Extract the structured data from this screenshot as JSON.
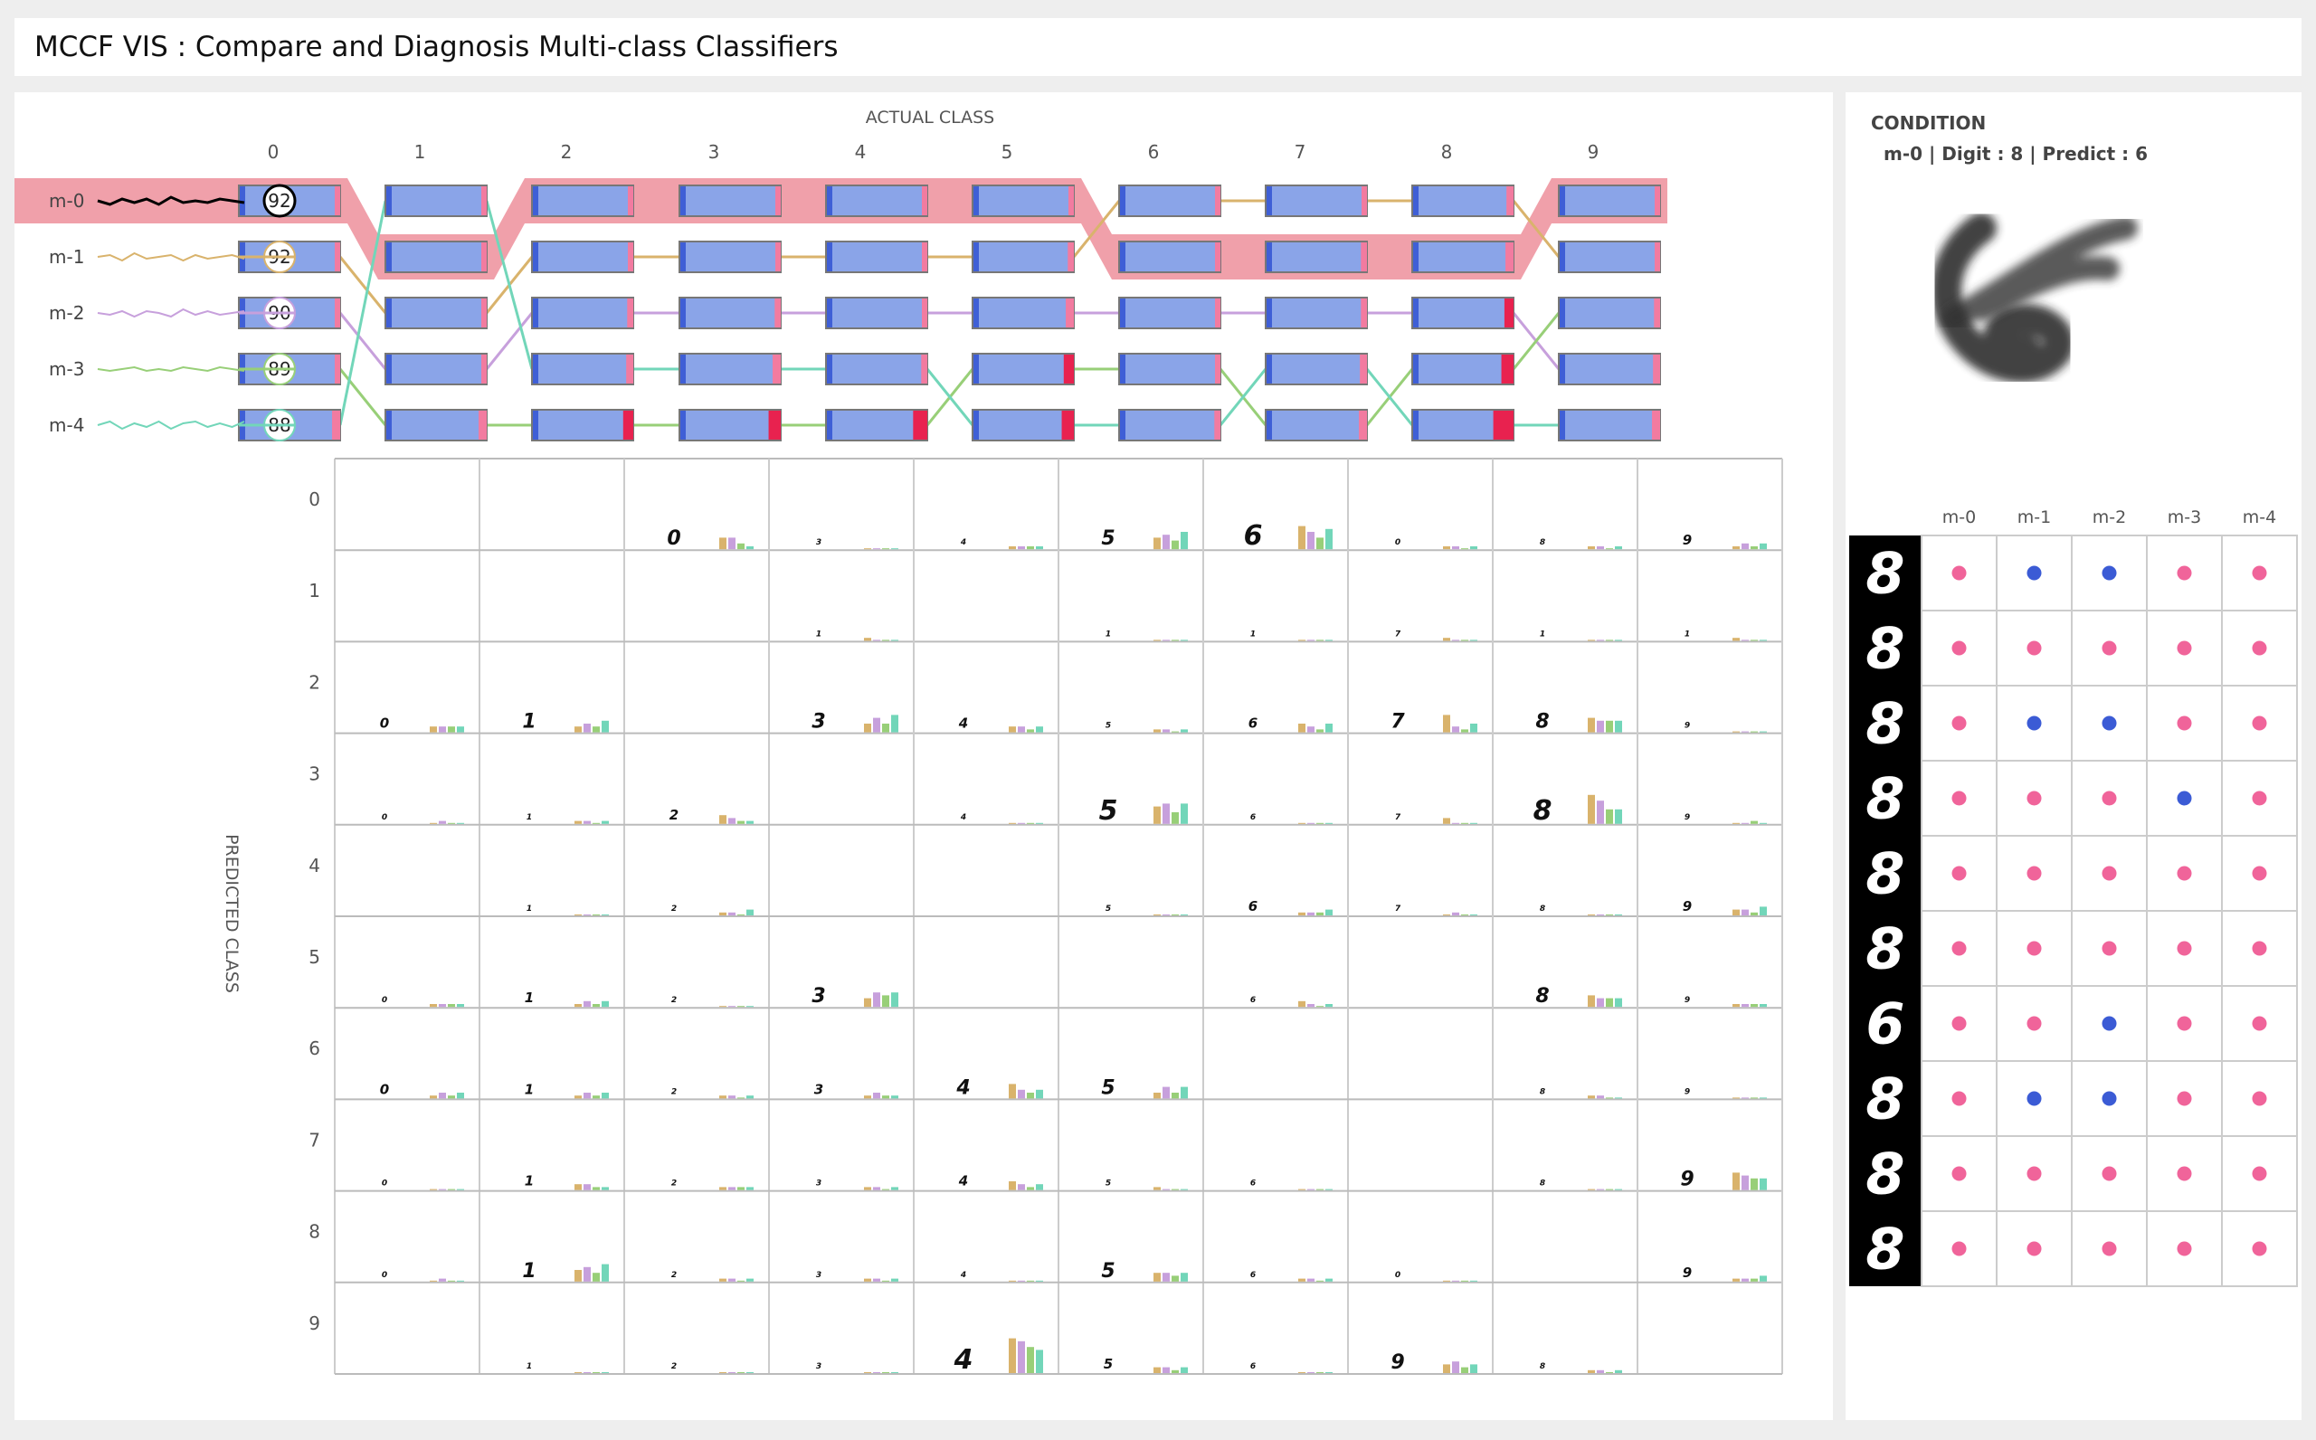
{
  "header": {
    "title": "MCCF VIS : Compare and Diagnosis Multi-class Classifiers"
  },
  "colors": {
    "highlight": "#f0a0aa",
    "bar_blue": "#8aa4e8",
    "bar_edge_blue": "#3f5fd6",
    "bar_red": "#e8224f",
    "bar_pink": "#f27ba0",
    "model_m0": "#000000",
    "model_m1": "#d9b36c",
    "model_m2": "#c7a0dc",
    "model_m3": "#98cf78",
    "model_m4": "#72d6b9",
    "dot_pink": "#f0649a",
    "dot_blue": "#3b5bd5",
    "digit_bg": "#000000"
  },
  "axes": {
    "actual_label": "ACTUAL CLASS",
    "predicted_label": "PREDICTED CLASS",
    "classes": [
      "0",
      "1",
      "2",
      "3",
      "4",
      "5",
      "6",
      "7",
      "8",
      "9"
    ]
  },
  "models": [
    {
      "name": "m-0",
      "accuracy": "92",
      "selected": true,
      "icon": "sparkline-icon"
    },
    {
      "name": "m-1",
      "accuracy": "92",
      "selected": false,
      "icon": "sparkline-icon"
    },
    {
      "name": "m-2",
      "accuracy": "90",
      "selected": false,
      "icon": "sparkline-icon"
    },
    {
      "name": "m-3",
      "accuracy": "89",
      "selected": false,
      "icon": "sparkline-icon"
    },
    {
      "name": "m-4",
      "accuracy": "88",
      "selected": false,
      "icon": "sparkline-icon"
    }
  ],
  "rank_order": [
    [
      0,
      1,
      2,
      3,
      4
    ],
    [
      4,
      0,
      1,
      2,
      3
    ],
    [
      0,
      1,
      2,
      4,
      3
    ],
    [
      0,
      1,
      2,
      4,
      3
    ],
    [
      0,
      1,
      2,
      4,
      3
    ],
    [
      0,
      1,
      2,
      3,
      4
    ],
    [
      1,
      0,
      2,
      3,
      4
    ],
    [
      1,
      0,
      2,
      4,
      3
    ],
    [
      1,
      0,
      2,
      3,
      4
    ],
    [
      0,
      1,
      3,
      2,
      4
    ]
  ],
  "error_rates": [
    [
      0.02,
      0.03,
      0.03,
      0.04,
      0.08
    ],
    [
      0.02,
      0.03,
      0.04,
      0.05,
      0.08
    ],
    [
      0.03,
      0.04,
      0.06,
      0.07,
      0.1
    ],
    [
      0.02,
      0.03,
      0.06,
      0.08,
      0.12
    ],
    [
      0.02,
      0.03,
      0.05,
      0.06,
      0.14
    ],
    [
      0.05,
      0.06,
      0.08,
      0.1,
      0.12
    ],
    [
      0.02,
      0.03,
      0.03,
      0.04,
      0.06
    ],
    [
      0.04,
      0.06,
      0.06,
      0.07,
      0.08
    ],
    [
      0.07,
      0.08,
      0.09,
      0.12,
      0.2
    ],
    [
      0.04,
      0.05,
      0.06,
      0.07,
      0.08
    ]
  ],
  "confusion_cells": [
    {
      "p": 0,
      "a": 2,
      "digit": "0",
      "bars": [
        4,
        4,
        2,
        1
      ]
    },
    {
      "p": 0,
      "a": 3,
      "digit": "3",
      "bars": [
        0,
        0,
        0,
        0
      ]
    },
    {
      "p": 0,
      "a": 4,
      "digit": "4",
      "bars": [
        1,
        1,
        1,
        1
      ]
    },
    {
      "p": 0,
      "a": 5,
      "digit": "5",
      "bars": [
        4,
        5,
        3,
        6
      ]
    },
    {
      "p": 0,
      "a": 6,
      "digit": "6",
      "bars": [
        8,
        6,
        4,
        7
      ]
    },
    {
      "p": 0,
      "a": 7,
      "digit": "0",
      "bars": [
        1,
        1,
        0,
        1
      ]
    },
    {
      "p": 0,
      "a": 8,
      "digit": "8",
      "bars": [
        1,
        1,
        0,
        1
      ]
    },
    {
      "p": 0,
      "a": 9,
      "digit": "9",
      "bars": [
        1,
        2,
        1,
        2
      ]
    },
    {
      "p": 1,
      "a": 3,
      "digit": "1",
      "bars": [
        1,
        0,
        0,
        0
      ]
    },
    {
      "p": 1,
      "a": 5,
      "digit": "1",
      "bars": [
        0,
        0,
        0,
        0
      ]
    },
    {
      "p": 1,
      "a": 6,
      "digit": "1",
      "bars": [
        0,
        0,
        0,
        0
      ]
    },
    {
      "p": 1,
      "a": 7,
      "digit": "7",
      "bars": [
        1,
        0,
        0,
        0
      ]
    },
    {
      "p": 1,
      "a": 8,
      "digit": "1",
      "bars": [
        0,
        0,
        0,
        0
      ]
    },
    {
      "p": 1,
      "a": 9,
      "digit": "1",
      "bars": [
        1,
        0,
        0,
        0
      ]
    },
    {
      "p": 2,
      "a": 0,
      "digit": "0",
      "bars": [
        2,
        2,
        2,
        2
      ]
    },
    {
      "p": 2,
      "a": 1,
      "digit": "1",
      "bars": [
        2,
        3,
        2,
        4
      ]
    },
    {
      "p": 2,
      "a": 3,
      "digit": "3",
      "bars": [
        3,
        5,
        3,
        6
      ]
    },
    {
      "p": 2,
      "a": 4,
      "digit": "4",
      "bars": [
        2,
        2,
        1,
        2
      ]
    },
    {
      "p": 2,
      "a": 5,
      "digit": "5",
      "bars": [
        1,
        1,
        0,
        1
      ]
    },
    {
      "p": 2,
      "a": 6,
      "digit": "6",
      "bars": [
        3,
        2,
        1,
        3
      ]
    },
    {
      "p": 2,
      "a": 7,
      "digit": "7",
      "bars": [
        6,
        2,
        1,
        3
      ]
    },
    {
      "p": 2,
      "a": 8,
      "digit": "8",
      "bars": [
        5,
        4,
        4,
        4
      ]
    },
    {
      "p": 2,
      "a": 9,
      "digit": "9",
      "bars": [
        0,
        0,
        0,
        0
      ]
    },
    {
      "p": 3,
      "a": 0,
      "digit": "0",
      "bars": [
        0,
        1,
        0,
        0
      ]
    },
    {
      "p": 3,
      "a": 1,
      "digit": "1",
      "bars": [
        1,
        1,
        0,
        1
      ]
    },
    {
      "p": 3,
      "a": 2,
      "digit": "2",
      "bars": [
        3,
        2,
        1,
        1
      ]
    },
    {
      "p": 3,
      "a": 4,
      "digit": "4",
      "bars": [
        0,
        0,
        0,
        0
      ]
    },
    {
      "p": 3,
      "a": 5,
      "digit": "5",
      "bars": [
        6,
        7,
        4,
        7
      ]
    },
    {
      "p": 3,
      "a": 6,
      "digit": "6",
      "bars": [
        0,
        0,
        0,
        0
      ]
    },
    {
      "p": 3,
      "a": 7,
      "digit": "7",
      "bars": [
        2,
        0,
        0,
        0
      ]
    },
    {
      "p": 3,
      "a": 8,
      "digit": "8",
      "bars": [
        10,
        8,
        5,
        5
      ]
    },
    {
      "p": 3,
      "a": 9,
      "digit": "9",
      "bars": [
        0,
        0,
        1,
        0
      ]
    },
    {
      "p": 4,
      "a": 1,
      "digit": "1",
      "bars": [
        0,
        0,
        0,
        0
      ]
    },
    {
      "p": 4,
      "a": 2,
      "digit": "2",
      "bars": [
        1,
        1,
        0,
        2
      ]
    },
    {
      "p": 4,
      "a": 5,
      "digit": "5",
      "bars": [
        0,
        0,
        0,
        0
      ]
    },
    {
      "p": 4,
      "a": 6,
      "digit": "6",
      "bars": [
        1,
        1,
        1,
        2
      ]
    },
    {
      "p": 4,
      "a": 7,
      "digit": "7",
      "bars": [
        0,
        1,
        0,
        0
      ]
    },
    {
      "p": 4,
      "a": 8,
      "digit": "8",
      "bars": [
        0,
        0,
        0,
        0
      ]
    },
    {
      "p": 4,
      "a": 9,
      "digit": "9",
      "bars": [
        2,
        2,
        1,
        3
      ]
    },
    {
      "p": 5,
      "a": 0,
      "digit": "0",
      "bars": [
        1,
        1,
        1,
        1
      ]
    },
    {
      "p": 5,
      "a": 1,
      "digit": "1",
      "bars": [
        1,
        2,
        1,
        2
      ]
    },
    {
      "p": 5,
      "a": 2,
      "digit": "2",
      "bars": [
        0,
        0,
        0,
        0
      ]
    },
    {
      "p": 5,
      "a": 3,
      "digit": "3",
      "bars": [
        3,
        5,
        4,
        5
      ]
    },
    {
      "p": 5,
      "a": 6,
      "digit": "6",
      "bars": [
        2,
        1,
        0,
        1
      ]
    },
    {
      "p": 5,
      "a": 8,
      "digit": "8",
      "bars": [
        4,
        3,
        3,
        3
      ]
    },
    {
      "p": 5,
      "a": 9,
      "digit": "9",
      "bars": [
        1,
        1,
        1,
        1
      ]
    },
    {
      "p": 6,
      "a": 0,
      "digit": "0",
      "bars": [
        1,
        2,
        1,
        2
      ]
    },
    {
      "p": 6,
      "a": 1,
      "digit": "1",
      "bars": [
        1,
        2,
        1,
        2
      ]
    },
    {
      "p": 6,
      "a": 2,
      "digit": "2",
      "bars": [
        1,
        1,
        0,
        1
      ]
    },
    {
      "p": 6,
      "a": 3,
      "digit": "3",
      "bars": [
        1,
        2,
        1,
        1
      ]
    },
    {
      "p": 6,
      "a": 4,
      "digit": "4",
      "bars": [
        5,
        3,
        2,
        3
      ]
    },
    {
      "p": 6,
      "a": 5,
      "digit": "5",
      "bars": [
        2,
        4,
        2,
        4
      ]
    },
    {
      "p": 6,
      "a": 8,
      "digit": "8",
      "bars": [
        1,
        1,
        0,
        0
      ]
    },
    {
      "p": 6,
      "a": 9,
      "digit": "9",
      "bars": [
        0,
        0,
        0,
        0
      ]
    },
    {
      "p": 7,
      "a": 0,
      "digit": "0",
      "bars": [
        0,
        0,
        0,
        0
      ]
    },
    {
      "p": 7,
      "a": 1,
      "digit": "1",
      "bars": [
        2,
        2,
        1,
        1
      ]
    },
    {
      "p": 7,
      "a": 2,
      "digit": "2",
      "bars": [
        1,
        1,
        1,
        1
      ]
    },
    {
      "p": 7,
      "a": 3,
      "digit": "3",
      "bars": [
        1,
        1,
        0,
        1
      ]
    },
    {
      "p": 7,
      "a": 4,
      "digit": "4",
      "bars": [
        3,
        2,
        1,
        2
      ]
    },
    {
      "p": 7,
      "a": 5,
      "digit": "5",
      "bars": [
        1,
        0,
        0,
        0
      ]
    },
    {
      "p": 7,
      "a": 6,
      "digit": "6",
      "bars": [
        0,
        0,
        0,
        0
      ]
    },
    {
      "p": 7,
      "a": 8,
      "digit": "8",
      "bars": [
        0,
        0,
        0,
        0
      ]
    },
    {
      "p": 7,
      "a": 9,
      "digit": "9",
      "bars": [
        6,
        5,
        4,
        4
      ]
    },
    {
      "p": 8,
      "a": 0,
      "digit": "0",
      "bars": [
        0,
        1,
        0,
        0
      ]
    },
    {
      "p": 8,
      "a": 1,
      "digit": "1",
      "bars": [
        4,
        5,
        3,
        6
      ]
    },
    {
      "p": 8,
      "a": 2,
      "digit": "2",
      "bars": [
        1,
        1,
        0,
        1
      ]
    },
    {
      "p": 8,
      "a": 3,
      "digit": "3",
      "bars": [
        1,
        1,
        0,
        1
      ]
    },
    {
      "p": 8,
      "a": 4,
      "digit": "4",
      "bars": [
        0,
        0,
        0,
        0
      ]
    },
    {
      "p": 8,
      "a": 5,
      "digit": "5",
      "bars": [
        3,
        3,
        2,
        3
      ]
    },
    {
      "p": 8,
      "a": 6,
      "digit": "6",
      "bars": [
        1,
        1,
        0,
        1
      ]
    },
    {
      "p": 8,
      "a": 7,
      "digit": "0",
      "bars": [
        0,
        0,
        0,
        0
      ]
    },
    {
      "p": 8,
      "a": 9,
      "digit": "9",
      "bars": [
        1,
        1,
        1,
        2
      ]
    },
    {
      "p": 9,
      "a": 1,
      "digit": "1",
      "bars": [
        0,
        0,
        0,
        0
      ]
    },
    {
      "p": 9,
      "a": 2,
      "digit": "2",
      "bars": [
        0,
        0,
        0,
        0
      ]
    },
    {
      "p": 9,
      "a": 3,
      "digit": "3",
      "bars": [
        0,
        0,
        0,
        0
      ]
    },
    {
      "p": 9,
      "a": 4,
      "digit": "4",
      "bars": [
        12,
        11,
        9,
        8
      ]
    },
    {
      "p": 9,
      "a": 5,
      "digit": "5",
      "bars": [
        2,
        2,
        1,
        2
      ]
    },
    {
      "p": 9,
      "a": 6,
      "digit": "6",
      "bars": [
        0,
        0,
        0,
        0
      ]
    },
    {
      "p": 9,
      "a": 7,
      "digit": "9",
      "bars": [
        3,
        4,
        2,
        3
      ]
    },
    {
      "p": 9,
      "a": 8,
      "digit": "8",
      "bars": [
        1,
        1,
        0,
        1
      ]
    }
  ],
  "condition": {
    "title": "CONDITION",
    "detail": "m-0 | Digit : 8 | Predict : 6",
    "image_icon": "handwritten-digit-image"
  },
  "sample_table": {
    "columns": [
      "m-0",
      "m-1",
      "m-2",
      "m-3",
      "m-4"
    ],
    "rows": [
      {
        "digit": "8",
        "correct": [
          false,
          true,
          true,
          false,
          false
        ]
      },
      {
        "digit": "8",
        "correct": [
          false,
          false,
          false,
          false,
          false
        ]
      },
      {
        "digit": "8",
        "correct": [
          false,
          true,
          true,
          false,
          false
        ]
      },
      {
        "digit": "8",
        "correct": [
          false,
          false,
          false,
          true,
          false
        ]
      },
      {
        "digit": "8",
        "correct": [
          false,
          false,
          false,
          false,
          false
        ]
      },
      {
        "digit": "8",
        "correct": [
          false,
          false,
          false,
          false,
          false
        ]
      },
      {
        "digit": "6",
        "correct": [
          false,
          false,
          true,
          false,
          false
        ]
      },
      {
        "digit": "8",
        "correct": [
          false,
          true,
          true,
          false,
          false
        ]
      },
      {
        "digit": "8",
        "correct": [
          false,
          false,
          false,
          false,
          false
        ]
      },
      {
        "digit": "8",
        "correct": [
          false,
          false,
          false,
          false,
          false
        ]
      }
    ]
  }
}
